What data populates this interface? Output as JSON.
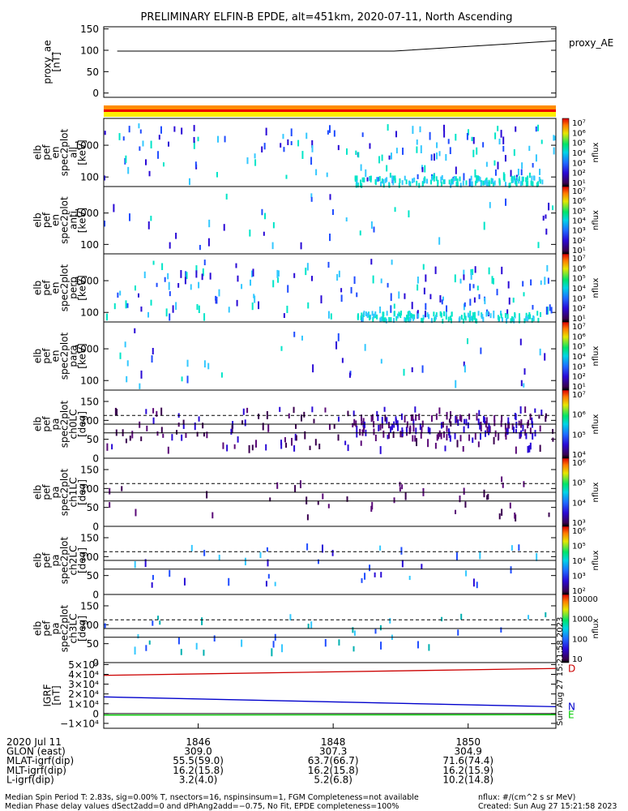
{
  "title": "PRELIMINARY ELFIN-B EPDE, alt=451km, 2020-07-11, North Ascending",
  "colors": {
    "orange_bar": "#ff8c00",
    "red_bar": "#ee0000",
    "yellow_bar": "#ffee00",
    "grf_total": "#cc0000",
    "grf_n": "#0000cc",
    "grf_e": "#00cc00",
    "spec_cool": "#00e5c8",
    "spec_light": "#33c8ff",
    "spec_blue": "#1f4cff",
    "spec_dark": "#2a0ad6",
    "spec_purple": "#5a0a78",
    "spec_deep": "#3a0050",
    "spec_teal": "#00b0b0"
  },
  "chart_data": {
    "type": "line",
    "title": "PRELIMINARY ELFIN-B EPDE, alt=451km, 2020-07-11, North Ascending",
    "x_ticks": [
      "1846",
      "1848",
      "1850"
    ],
    "x_range": [
      1844.6,
      1851.3
    ],
    "panels": [
      {
        "id": "proxy_ae",
        "ylabel": [
          "proxy_ae",
          "[nT]"
        ],
        "legend": "proxy_AE",
        "yticks": [
          "150",
          "100",
          "50",
          "0"
        ],
        "ylim": [
          -10,
          155
        ],
        "x": [
          1844.8,
          1848.9,
          1851.3
        ],
        "y": [
          98,
          98,
          122
        ]
      },
      {
        "id": "en_all",
        "ylabel": [
          "elb",
          "pef",
          "en",
          "spec2plot",
          "all",
          "[keV]"
        ],
        "yticks": [
          "1000",
          "100"
        ],
        "log": true,
        "ylim": [
          50,
          7000
        ],
        "cb_ticks": [
          "10⁷",
          "10⁶",
          "10⁵",
          "10⁴",
          "10³",
          "10²",
          "10¹"
        ],
        "cb_label": "nflux"
      },
      {
        "id": "en_anti",
        "ylabel": [
          "elb",
          "pef",
          "en",
          "spec2plot",
          "anti",
          "[keV]"
        ],
        "yticks": [
          "1000",
          "100"
        ],
        "log": true,
        "ylim": [
          50,
          7000
        ],
        "cb_ticks": [
          "10⁷",
          "10⁶",
          "10⁵",
          "10⁴",
          "10³",
          "10²",
          "10¹"
        ],
        "cb_label": "nflux"
      },
      {
        "id": "en_perp",
        "ylabel": [
          "elb",
          "pef",
          "en",
          "spec2plot",
          "perp",
          "[keV]"
        ],
        "yticks": [
          "1000",
          "100"
        ],
        "log": true,
        "ylim": [
          50,
          7000
        ],
        "cb_ticks": [
          "10⁷",
          "10⁶",
          "10⁵",
          "10⁴",
          "10³",
          "10²",
          "10¹"
        ],
        "cb_label": "nflux"
      },
      {
        "id": "en_para",
        "ylabel": [
          "elb",
          "pef",
          "en",
          "spec2plot",
          "para",
          "[keV]"
        ],
        "yticks": [
          "1000",
          "100"
        ],
        "log": true,
        "ylim": [
          50,
          7000
        ],
        "cb_ticks": [
          "10⁷",
          "10⁶",
          "10⁵",
          "10⁴",
          "10³",
          "10²",
          "10¹"
        ],
        "cb_label": "nflux"
      },
      {
        "id": "pa_ch0",
        "ylabel": [
          "elb",
          "pef",
          "pa",
          "spec2plot",
          "ch0LC",
          "[deg]"
        ],
        "yticks": [
          "150",
          "100",
          "50",
          "0"
        ],
        "ylim": [
          0,
          180
        ],
        "dashed": 113,
        "solid": [
          90,
          67
        ],
        "cb_ticks": [
          "10⁷",
          "10⁶",
          "10⁵",
          "10⁴"
        ],
        "cb_label": "nflux"
      },
      {
        "id": "pa_ch1",
        "ylabel": [
          "elb",
          "pef",
          "pa",
          "spec2plot",
          "ch1LC",
          "[deg]"
        ],
        "yticks": [
          "150",
          "100",
          "50",
          "0"
        ],
        "ylim": [
          0,
          180
        ],
        "dashed": 113,
        "solid": [
          90,
          67
        ],
        "cb_ticks": [
          "10⁶",
          "10⁵",
          "10⁴",
          "10³"
        ],
        "cb_label": "nflux"
      },
      {
        "id": "pa_ch2",
        "ylabel": [
          "elb",
          "pef",
          "pa",
          "spec2plot",
          "ch2LC",
          "[deg]"
        ],
        "yticks": [
          "150",
          "100",
          "50",
          "0"
        ],
        "ylim": [
          0,
          180
        ],
        "dashed": 113,
        "solid": [
          90,
          67
        ],
        "cb_ticks": [
          "10⁶",
          "10⁵",
          "10⁴",
          "10³",
          "10²"
        ],
        "cb_label": "nflux"
      },
      {
        "id": "pa_ch3",
        "ylabel": [
          "elb",
          "pef",
          "pa",
          "spec2plot",
          "ch3LC",
          "[deg]"
        ],
        "yticks": [
          "150",
          "100",
          "50",
          "0"
        ],
        "ylim": [
          0,
          180
        ],
        "dashed": 113,
        "solid": [
          90,
          67
        ],
        "cb_ticks": [
          "10000",
          "1000",
          "100",
          "10"
        ],
        "cb_label": "nflux"
      },
      {
        "id": "igrf",
        "ylabel": [
          "IGRF",
          "[nT]"
        ],
        "yticks": [
          "5×10⁴",
          "4×10⁴",
          "3×10⁴",
          "2×10⁴",
          "1×10⁴",
          "0",
          "−1×10⁴"
        ],
        "ylim": [
          -15000,
          52000
        ],
        "series": [
          {
            "name": "D",
            "x": [
              1844.6,
              1851.3
            ],
            "y": [
              39000,
              46000
            ]
          },
          {
            "name": "N",
            "x": [
              1844.6,
              1851.3
            ],
            "y": [
              17000,
              7000
            ]
          },
          {
            "name": "E",
            "x": [
              1844.6,
              1851.3
            ],
            "y": [
              -1500,
              -1200
            ]
          }
        ]
      }
    ],
    "rows": [
      {
        "label": "2020 Jul 11",
        "values": [
          "1846",
          "1848",
          "1850"
        ]
      },
      {
        "label": "GLON (east)",
        "values": [
          "309.0",
          "307.3",
          "304.9"
        ]
      },
      {
        "label": "MLAT-igrf(dip)",
        "values": [
          "55.5(59.0)",
          "63.7(66.7)",
          "71.6(74.4)"
        ]
      },
      {
        "label": "MLT-igrf(dip)",
        "values": [
          "16.2(15.8)",
          "16.2(15.8)",
          "16.2(15.9)"
        ]
      },
      {
        "label": "L-igrf(dip)",
        "values": [
          "3.2(4.0)",
          "5.2(6.8)",
          "10.2(14.8)"
        ]
      }
    ],
    "side_note": "Sun Aug 27 15:21:58 2023",
    "footer": {
      "line1": "Median Spin Period T: 2.83s, sig=0.00% T, nsectors=16, nspinsinsum=1, FGM Completeness=not available",
      "line2": "Median Phase delay values dSect2add=0 and dPhAng2add=−0.75, No Fit, EPDE completeness=100%",
      "units": "nflux: #/(cm^2 s sr MeV)",
      "created": "Created: Sun Aug 27 15:21:58 2023"
    }
  }
}
